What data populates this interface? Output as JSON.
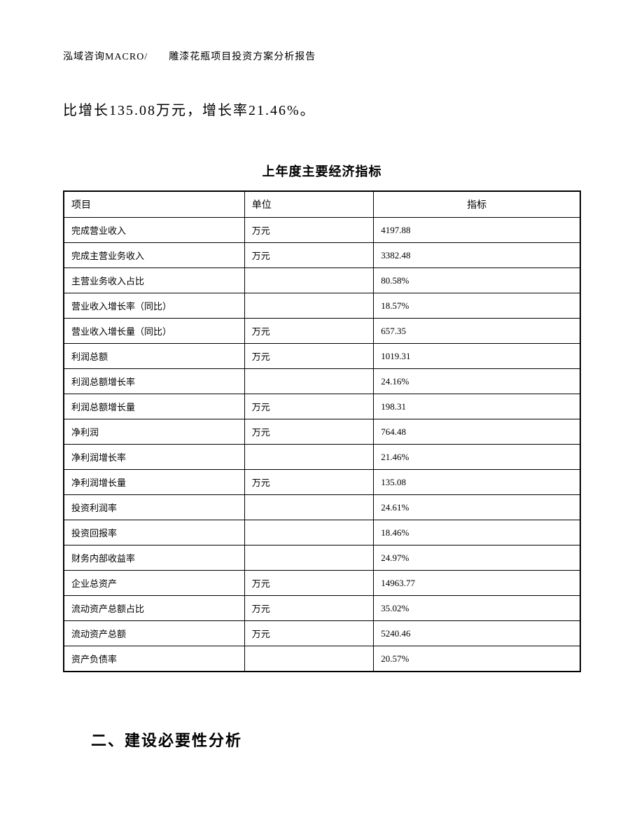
{
  "header": "泓域咨询MACRO/　　雕漆花瓶项目投资方案分析报告",
  "paragraph": "比增长135.08万元，增长率21.46%。",
  "table_title": "上年度主要经济指标",
  "table": {
    "headers": {
      "col1": "项目",
      "col2": "单位",
      "col3": "指标"
    },
    "rows": [
      {
        "item": "完成营业收入",
        "unit": "万元",
        "value": "4197.88"
      },
      {
        "item": "完成主营业务收入",
        "unit": "万元",
        "value": "3382.48"
      },
      {
        "item": "主营业务收入占比",
        "unit": "",
        "value": "80.58%"
      },
      {
        "item": "营业收入增长率（同比）",
        "unit": "",
        "value": "18.57%"
      },
      {
        "item": "营业收入增长量（同比）",
        "unit": "万元",
        "value": "657.35"
      },
      {
        "item": "利润总额",
        "unit": "万元",
        "value": "1019.31"
      },
      {
        "item": "利润总额增长率",
        "unit": "",
        "value": "24.16%"
      },
      {
        "item": "利润总额增长量",
        "unit": "万元",
        "value": "198.31"
      },
      {
        "item": "净利润",
        "unit": "万元",
        "value": "764.48"
      },
      {
        "item": "净利润增长率",
        "unit": "",
        "value": "21.46%"
      },
      {
        "item": "净利润增长量",
        "unit": "万元",
        "value": "135.08"
      },
      {
        "item": "投资利润率",
        "unit": "",
        "value": "24.61%"
      },
      {
        "item": "投资回报率",
        "unit": "",
        "value": "18.46%"
      },
      {
        "item": "财务内部收益率",
        "unit": "",
        "value": "24.97%"
      },
      {
        "item": "企业总资产",
        "unit": "万元",
        "value": "14963.77"
      },
      {
        "item": "流动资产总额占比",
        "unit": "万元",
        "value": "35.02%"
      },
      {
        "item": "流动资产总额",
        "unit": "万元",
        "value": "5240.46"
      },
      {
        "item": "资产负债率",
        "unit": "",
        "value": "20.57%"
      }
    ]
  },
  "section_heading": "二、建设必要性分析"
}
